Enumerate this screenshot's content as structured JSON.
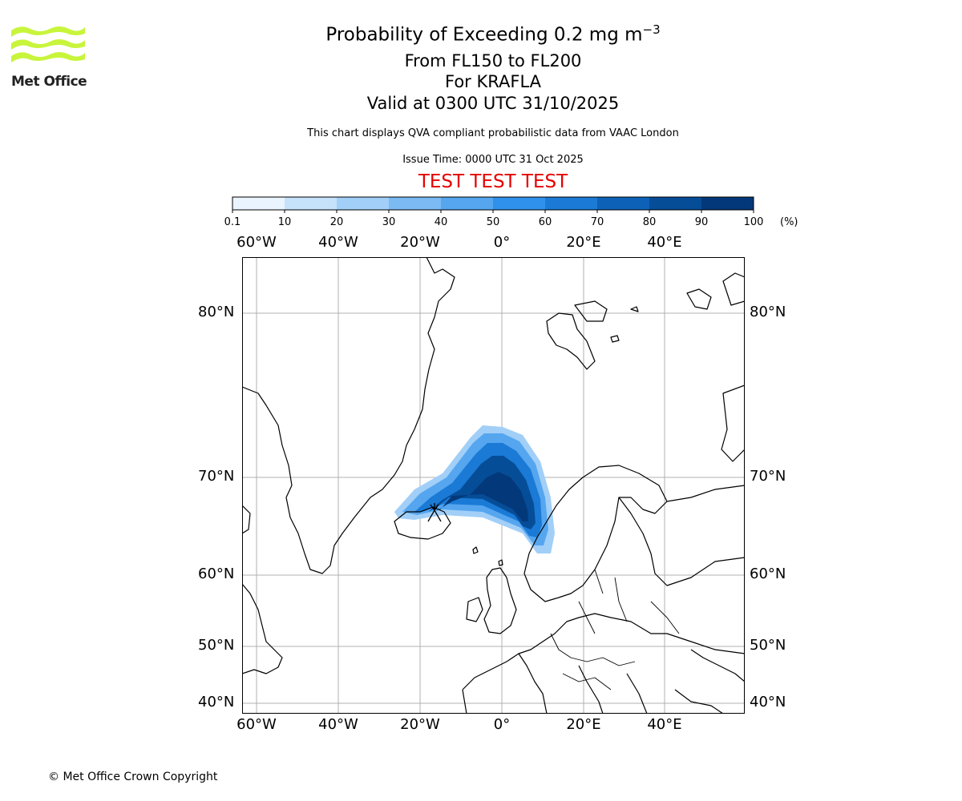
{
  "title": {
    "line1_main": "Probability of Exceeding 0.2 mg m",
    "line1_exponent": "−3",
    "line2": "From FL150 to FL200",
    "line3": "For KRAFLA",
    "line4": "Valid at 0300 UTC 31/10/2025"
  },
  "subtitle": "This chart displays QVA compliant probabilistic data from VAAC London",
  "issue_time": "Issue Time: 0000 UTC 31 Oct 2025",
  "test_banner": "TEST TEST TEST",
  "logo": {
    "text": "Met Office",
    "color": "#c8f53c"
  },
  "copyright": "© Met Office Crown Copyright",
  "colorbar": {
    "tick_labels": [
      "0.1",
      "10",
      "20",
      "30",
      "40",
      "50",
      "60",
      "70",
      "80",
      "90",
      "100"
    ],
    "unit": "(%)",
    "colors": [
      "#eaf4ff",
      "#c6e2fb",
      "#a2cff7",
      "#7bbaf3",
      "#55a6ef",
      "#2f91eb",
      "#1a7ad6",
      "#0d62b8",
      "#064d98",
      "#03397a",
      "#022b5e"
    ]
  },
  "map": {
    "lon_labels_top": [
      "60°W",
      "40°W",
      "20°W",
      "0°",
      "20°E",
      "40°E"
    ],
    "lon_labels_bottom": [
      "60°W",
      "40°W",
      "20°W",
      "0°",
      "20°E",
      "40°E"
    ],
    "lat_labels_left": [
      "80°N",
      "70°N",
      "60°N",
      "50°N",
      "40°N"
    ],
    "lat_labels_right": [
      "80°N",
      "70°N",
      "60°N",
      "50°N",
      "40°N"
    ],
    "volcano": "KRAFLA",
    "gridline_color": "#b0b0b0",
    "coast_color": "#000000"
  }
}
